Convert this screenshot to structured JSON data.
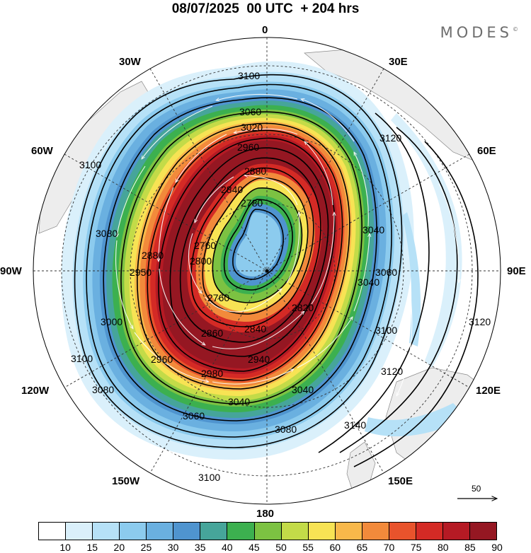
{
  "header": {
    "title": "08/07/2025  00 UTC  + 204 hrs",
    "brand": "MODES",
    "brand_mark": "©"
  },
  "map": {
    "longitude_labels": {
      "lon_0": "0",
      "lon_30e": "30E",
      "lon_60e": "60E",
      "lon_90e": "90E",
      "lon_120e": "120E",
      "lon_150e": "150E",
      "lon_180": "180",
      "lon_150w": "150W",
      "lon_120w": "120W",
      "lon_90w": "90W",
      "lon_60w": "60W",
      "lon_30w": "30W"
    },
    "contour_labels": {
      "c3100_top": "3100",
      "c3060_top": "3060",
      "c3020_top": "3020",
      "c2960_top": "2960",
      "c2880_top": "2880",
      "c2840_top": "2840",
      "c2780_top": "2780",
      "c2760_a": "2760",
      "c2760_b": "2760",
      "c3100_w": "3100",
      "c3080_w": "3080",
      "c3000_w": "3000",
      "c2950_w": "2950",
      "c2880_w": "2880",
      "c2800_w": "2800",
      "c2820_e": "2820",
      "c2840_s": "2840",
      "c2860_s": "2860",
      "c2940_s": "2940",
      "c2960_sw": "2960",
      "c2980_s": "2980",
      "c3040_s": "3040",
      "c3040_se": "3040",
      "c3060_sw": "3060",
      "c3080_sw": "3080",
      "c3080_s": "3080",
      "c3100_s": "3100",
      "c3100_sw": "3100",
      "c3120_ne": "3120",
      "c3120_e": "3120",
      "c3120_se": "3120",
      "c3100_e": "3100",
      "c3060_e": "3060",
      "c3040_e": "3040",
      "c3040_ne": "3040",
      "c3140_se": "3140"
    },
    "reference_vector_label": "50",
    "center_lat": -90,
    "fill_colors": {
      "land": "#ededed",
      "jet_core": "#a51d24",
      "grid": "#555555"
    }
  },
  "colorbar": {
    "colors": [
      "#ffffff",
      "#daf0fb",
      "#b6e1f7",
      "#8ccbee",
      "#6ab0e0",
      "#4f94cf",
      "#46a59a",
      "#3cb04f",
      "#7cc242",
      "#c3db48",
      "#f7e354",
      "#f8b84a",
      "#f28a3b",
      "#e8532c",
      "#d42a25",
      "#b51a24",
      "#951722"
    ],
    "ticks": [
      "10",
      "15",
      "20",
      "25",
      "30",
      "35",
      "40",
      "45",
      "50",
      "55",
      "60",
      "65",
      "70",
      "75",
      "80",
      "85",
      "90"
    ]
  }
}
